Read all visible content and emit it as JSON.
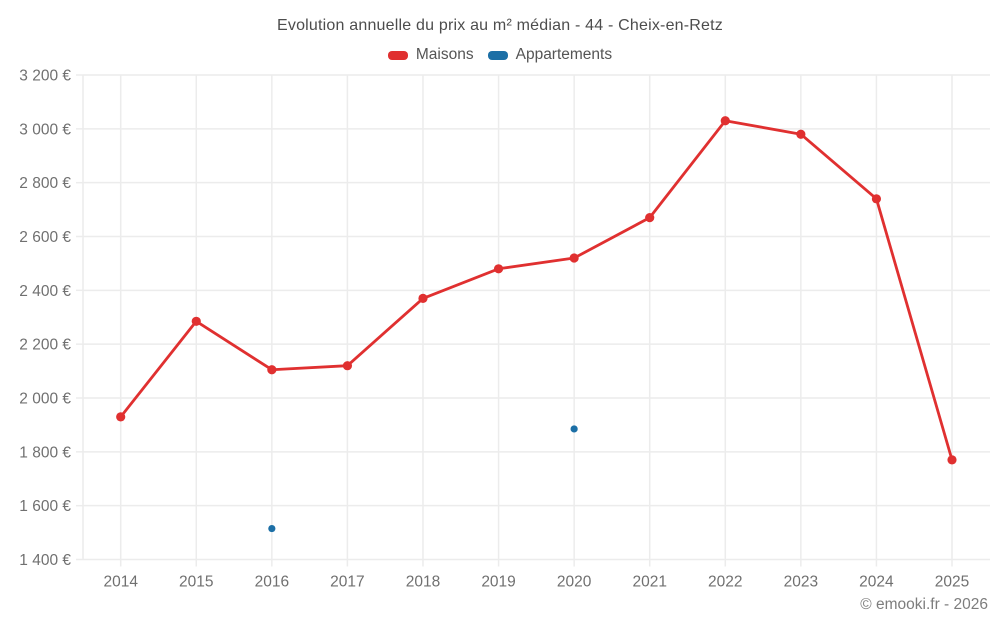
{
  "chart_data": {
    "type": "line",
    "title": "Evolution annuelle du prix au m² médian - 44 - Cheix-en-Retz",
    "categories": [
      "2014",
      "2015",
      "2016",
      "2017",
      "2018",
      "2019",
      "2020",
      "2021",
      "2022",
      "2023",
      "2024",
      "2025"
    ],
    "series": [
      {
        "name": "Maisons",
        "type": "line",
        "color": "#e03030",
        "values": [
          1930,
          2285,
          2105,
          2120,
          2370,
          2480,
          2520,
          2670,
          3030,
          2980,
          2740,
          1770
        ]
      },
      {
        "name": "Appartements",
        "type": "scatter",
        "color": "#1c6fa6",
        "values": [
          null,
          null,
          1515,
          null,
          null,
          null,
          1885,
          null,
          null,
          null,
          null,
          null
        ]
      }
    ],
    "ylim": [
      1400,
      3200
    ],
    "y_ticks": [
      {
        "value": 1400,
        "label": "1 400 €"
      },
      {
        "value": 1600,
        "label": "1 600 €"
      },
      {
        "value": 1800,
        "label": "1 800 €"
      },
      {
        "value": 2000,
        "label": "2 000 €"
      },
      {
        "value": 2200,
        "label": "2 200 €"
      },
      {
        "value": 2400,
        "label": "2 400 €"
      },
      {
        "value": 2600,
        "label": "2 600 €"
      },
      {
        "value": 2800,
        "label": "2 800 €"
      },
      {
        "value": 3000,
        "label": "3 000 €"
      },
      {
        "value": 3200,
        "label": "3 200 €"
      }
    ],
    "grid": true,
    "legend_position": "top"
  },
  "colors": {
    "maisons": "#e03030",
    "appartements": "#1c6fa6",
    "grid": "#ececec",
    "title_text": "#4d4d4d",
    "tick_text": "#707070",
    "copyright_text": "#7d7d7d"
  },
  "footer": {
    "copyright": "© emooki.fr - 2026"
  }
}
